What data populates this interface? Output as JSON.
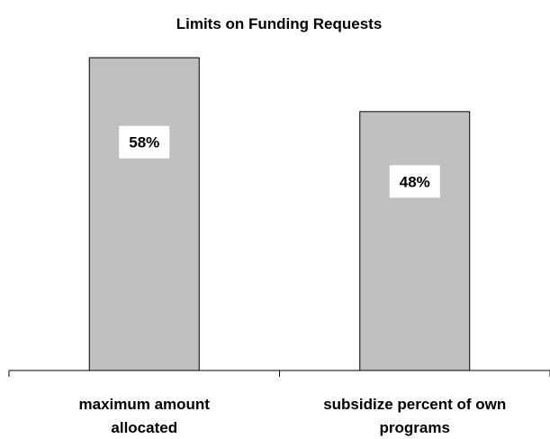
{
  "chart_data": {
    "type": "bar",
    "title": "Limits on Funding Requests",
    "categories": [
      [
        "maximum amount",
        "allocated"
      ],
      [
        "subsidize percent of own",
        "programs"
      ]
    ],
    "values": [
      58,
      48
    ],
    "data_labels": [
      "58%",
      "48%"
    ],
    "ylim": [
      0,
      60
    ],
    "grid": false,
    "legend": "none",
    "bar_color": "#c0c0c0",
    "bar_border_color": "#000000",
    "label_box_color": "#ffffff"
  }
}
